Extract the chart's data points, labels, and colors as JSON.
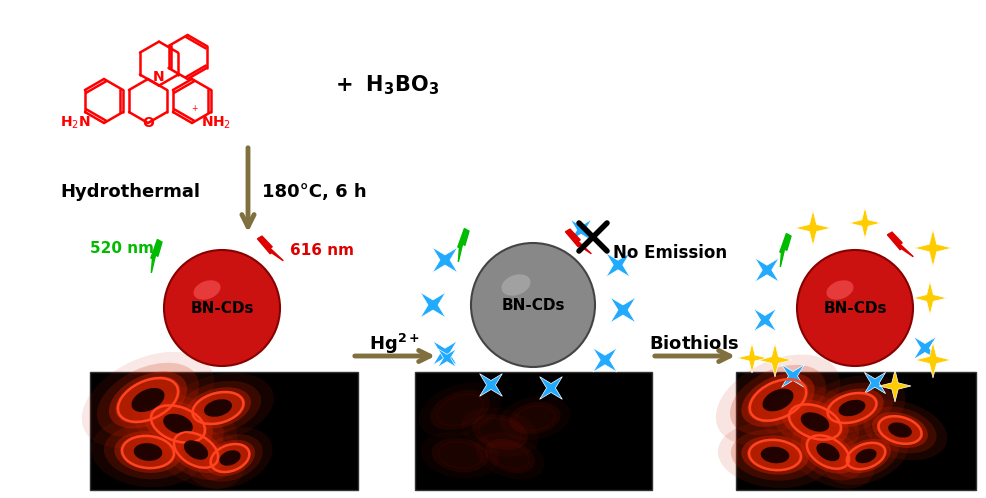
{
  "bg_color": "#ffffff",
  "molecule_color": "#ff0000",
  "arrow_color": "#807040",
  "hydrothermal_text": "Hydrothermal",
  "condition_text": "180°C, 6 h",
  "nm520_text": "520 nm",
  "nm616_text": "616 nm",
  "bncds_text": "BN-CDs",
  "hg_text": "Hg$^{2+}$",
  "biothiols_text": "Biothiols",
  "no_emission_text": "No Emission",
  "green_color": "#00bb00",
  "red_color": "#dd0000",
  "cyan_color": "#22aaff",
  "yellow_color": "#ffcc00",
  "black_color": "#000000",
  "ball_red_face": "#cc1111",
  "ball_red_edge": "#880000",
  "ball_gray_face": "#888888",
  "ball_gray_edge": "#444444",
  "white": "#ffffff"
}
